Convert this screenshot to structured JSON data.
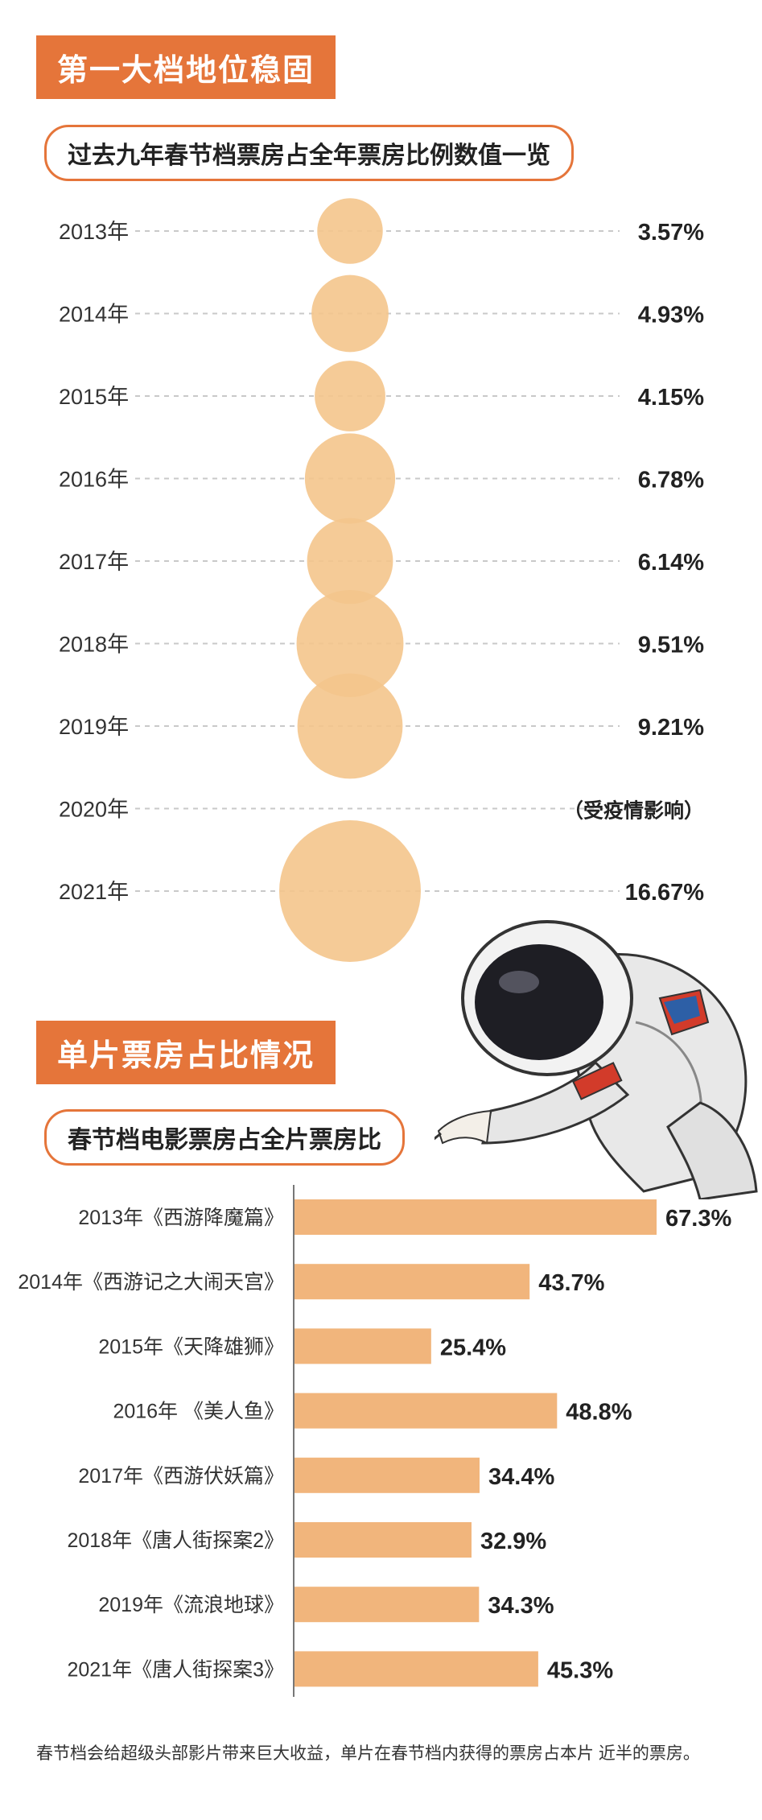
{
  "section1": {
    "banner": "第一大档地位稳固",
    "subtitle": "过去九年春节档票房占全年票房比例数值一览"
  },
  "section2": {
    "banner": "单片票房占比情况",
    "subtitle": "春节档电影票房占全片票房比"
  },
  "footer": "春节档会给超级头部影片带来巨大收益，单片在春节档内获得的票房占本片 近半的票房。",
  "colors": {
    "accent": "#e5753a",
    "bubble": "#f4c58c",
    "bar": "#f1b57c"
  },
  "chart_data": [
    {
      "type": "bubble",
      "title": "过去九年春节档票房占全年票房比例数值一览",
      "categories": [
        "2013年",
        "2014年",
        "2015年",
        "2016年",
        "2017年",
        "2018年",
        "2019年",
        "2020年",
        "2021年"
      ],
      "values": [
        3.57,
        4.93,
        4.15,
        6.78,
        6.14,
        9.51,
        9.21,
        null,
        16.67
      ],
      "labels": [
        "3.57%",
        "4.93%",
        "4.15%",
        "6.78%",
        "6.14%",
        "9.51%",
        "9.21%",
        "（受疫情影响）",
        "16.67%"
      ]
    },
    {
      "type": "bar",
      "orientation": "horizontal",
      "title": "春节档电影票房占全片票房比",
      "categories": [
        "2013年《西游降魔篇》",
        "2014年《西游记之大闹天宫》",
        "2015年《天降雄狮》",
        "2016年 《美人鱼》",
        "2017年《西游伏妖篇》",
        "2018年《唐人街探案2》",
        "2019年《流浪地球》",
        "2021年《唐人街探案3》"
      ],
      "values": [
        67.3,
        43.7,
        25.4,
        48.8,
        34.4,
        32.9,
        34.3,
        45.3
      ],
      "labels": [
        "67.3%",
        "43.7%",
        "25.4%",
        "48.8%",
        "34.4%",
        "32.9%",
        "34.3%",
        "45.3%"
      ]
    }
  ]
}
